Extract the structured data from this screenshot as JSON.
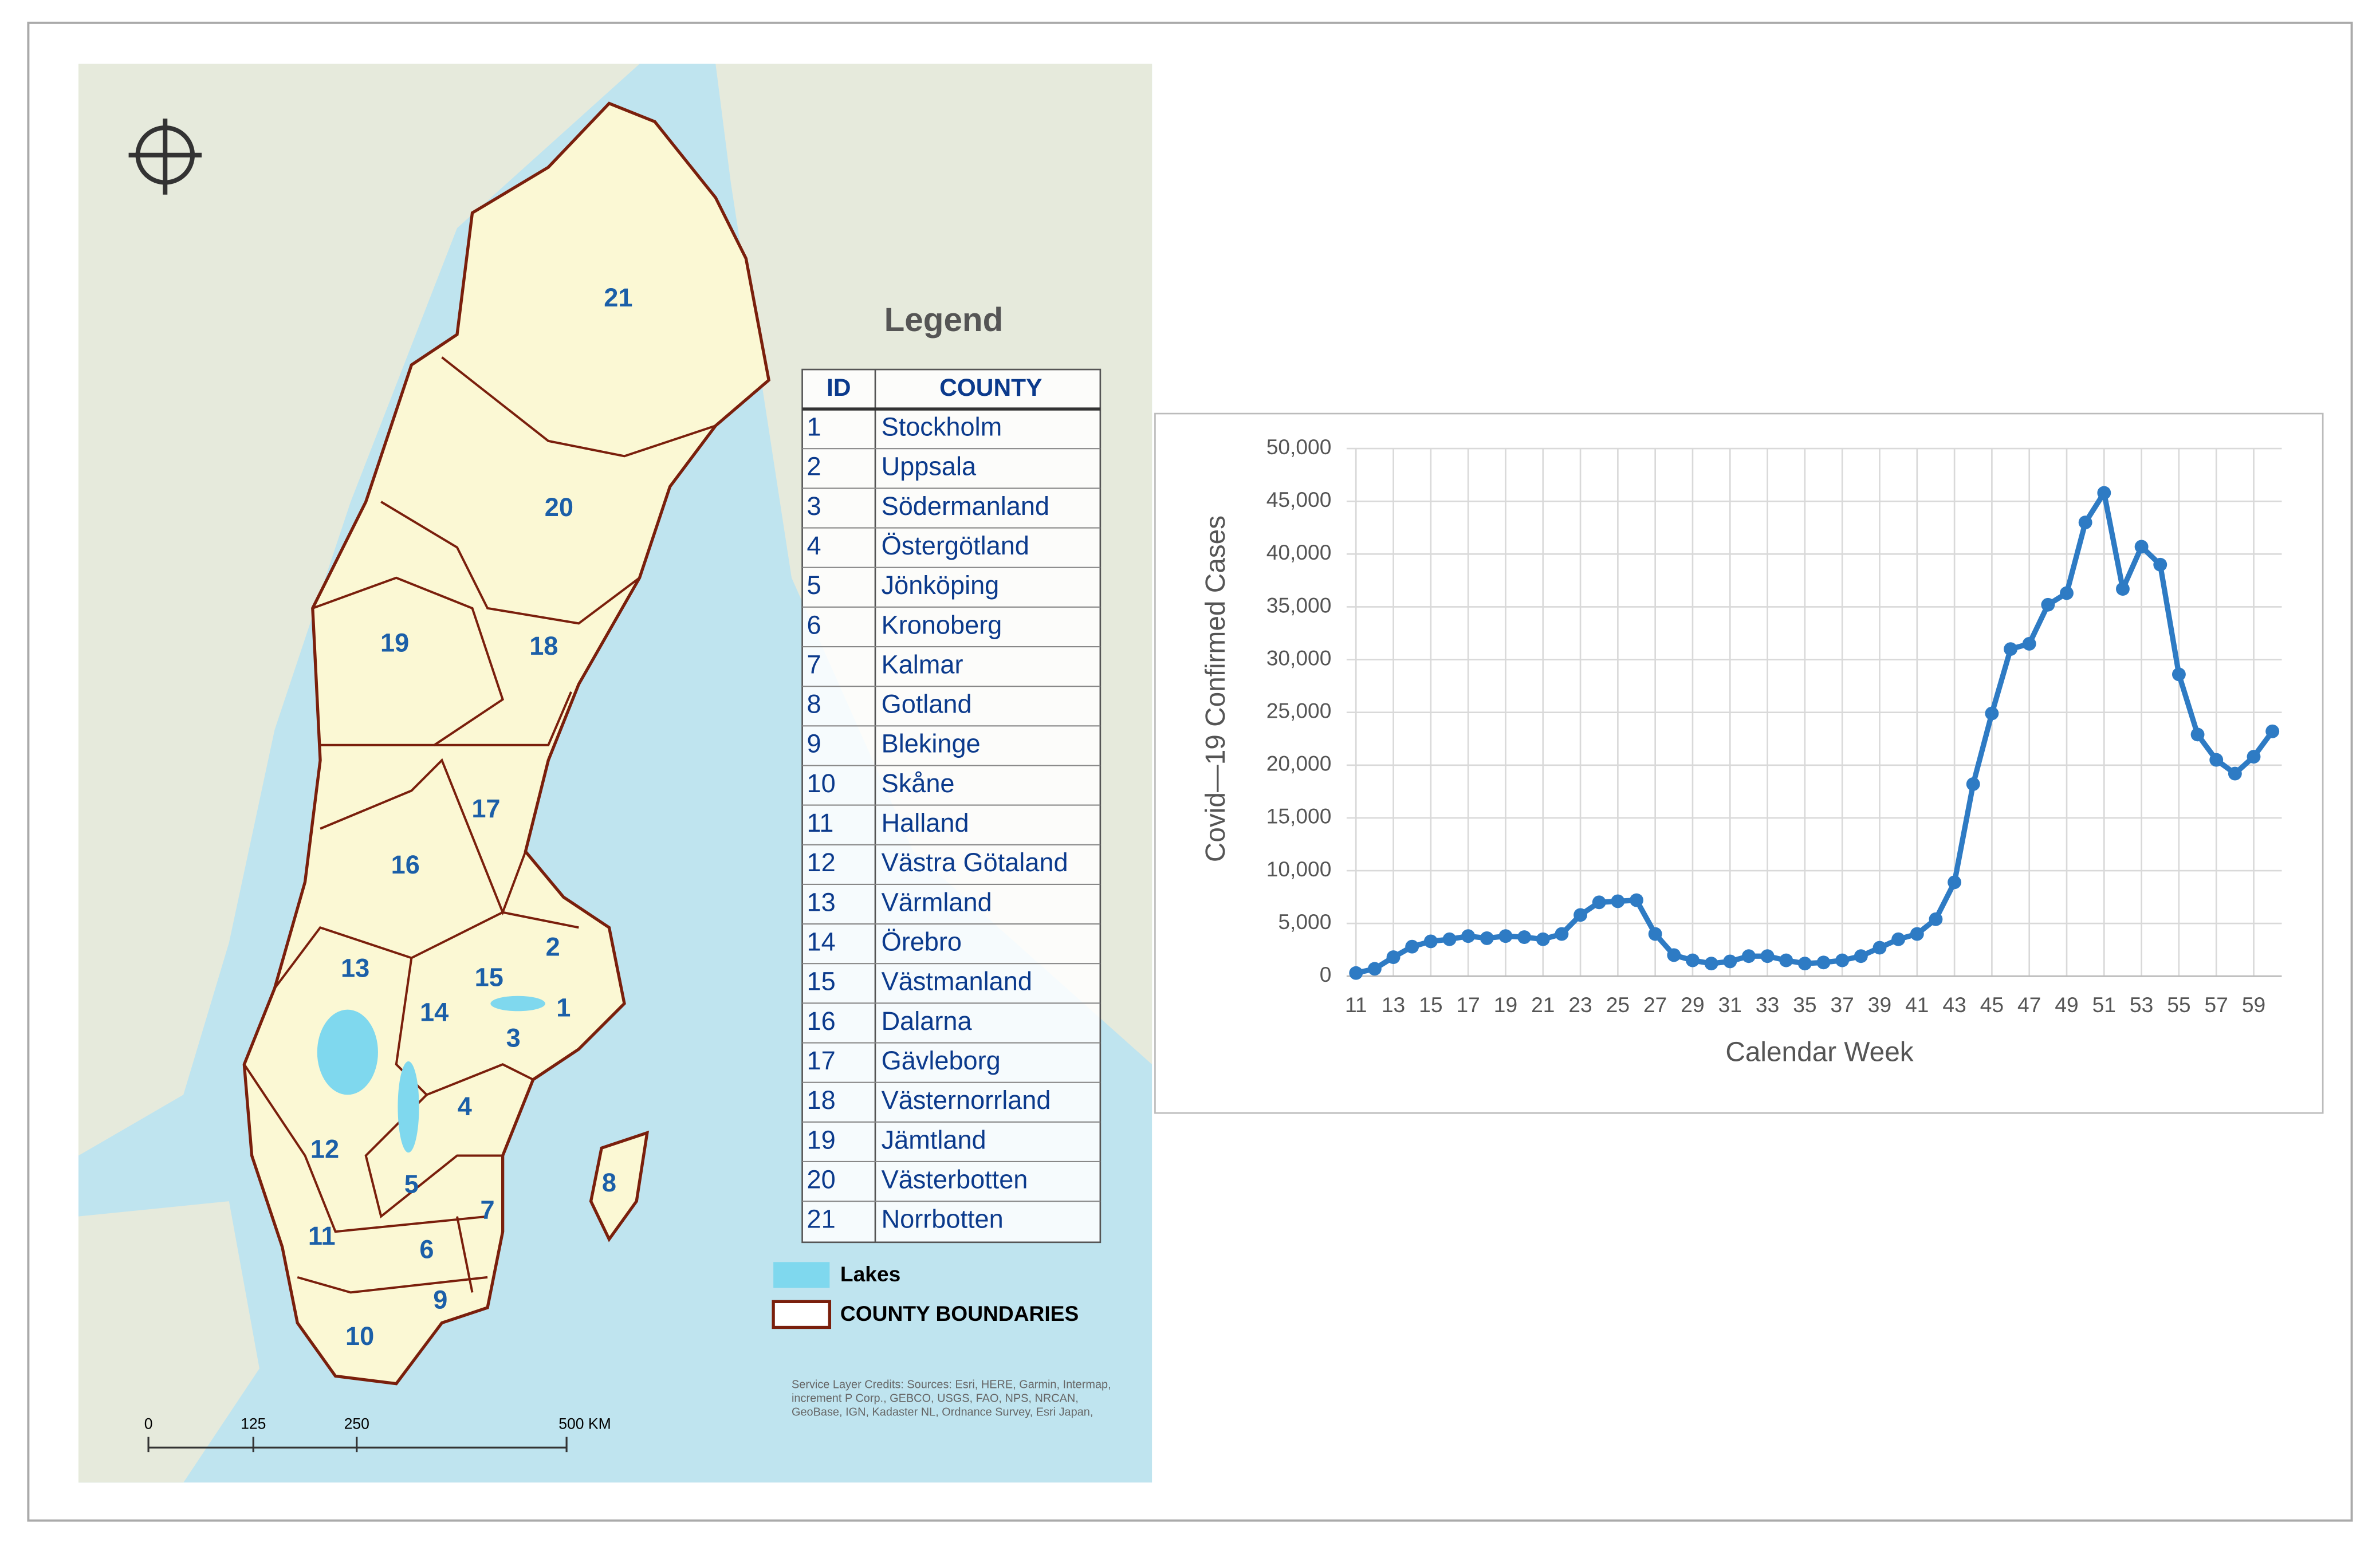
{
  "map": {
    "legend_title": "Legend",
    "table_header": [
      "ID",
      "COUNTY"
    ],
    "rows": [
      {
        "id": "1",
        "county": "Stockholm"
      },
      {
        "id": "2",
        "county": "Uppsala"
      },
      {
        "id": "3",
        "county": "Södermanland"
      },
      {
        "id": "4",
        "county": "Östergötland"
      },
      {
        "id": "5",
        "county": "Jönköping"
      },
      {
        "id": "6",
        "county": "Kronoberg"
      },
      {
        "id": "7",
        "county": "Kalmar"
      },
      {
        "id": "8",
        "county": "Gotland"
      },
      {
        "id": "9",
        "county": "Blekinge"
      },
      {
        "id": "10",
        "county": "Skåne"
      },
      {
        "id": "11",
        "county": "Halland"
      },
      {
        "id": "12",
        "county": "Västra Götaland"
      },
      {
        "id": "13",
        "county": "Värmland"
      },
      {
        "id": "14",
        "county": "Örebro"
      },
      {
        "id": "15",
        "county": "Västmanland"
      },
      {
        "id": "16",
        "county": "Dalarna"
      },
      {
        "id": "17",
        "county": "Gävleborg"
      },
      {
        "id": "18",
        "county": "Västernorrland"
      },
      {
        "id": "19",
        "county": "Jämtland"
      },
      {
        "id": "20",
        "county": "Västerbotten"
      },
      {
        "id": "21",
        "county": "Norrbotten"
      }
    ],
    "legend_items": [
      "Lakes",
      "COUNTY BOUNDARIES"
    ],
    "scale_labels": [
      "0",
      "125",
      "250",
      "500 KM"
    ],
    "credits": "Service Layer Credits: Sources: Esri, HERE, Garmin, Intermap, increment P Corp., GEBCO, USGS, FAO, NPS, NRCAN, GeoBase, IGN, Kadaster NL, Ordnance Survey, Esri Japan,"
  },
  "chart_data": {
    "type": "line",
    "y_label": "Covid—19 Confirmed  Cases",
    "x_label": "Calendar Week",
    "color": "#2e7bc4",
    "x": [
      11,
      12,
      13,
      14,
      15,
      16,
      17,
      18,
      19,
      20,
      21,
      22,
      23,
      24,
      25,
      26,
      27,
      28,
      29,
      30,
      31,
      32,
      33,
      34,
      35,
      36,
      37,
      38,
      39,
      40,
      41,
      42,
      43,
      44,
      45,
      46,
      47,
      48,
      49,
      50,
      51,
      52,
      53,
      54,
      55,
      56,
      57,
      58,
      59,
      60
    ],
    "values": [
      300,
      700,
      1800,
      2800,
      3300,
      3500,
      3800,
      3600,
      3800,
      3700,
      3500,
      4000,
      5800,
      7000,
      7100,
      7200,
      4000,
      2000,
      1500,
      1200,
      1400,
      1900,
      1900,
      1500,
      1200,
      1300,
      1500,
      1900,
      2700,
      3500,
      4000,
      5400,
      8900,
      18200,
      24900,
      31000,
      31500,
      35200,
      36300,
      43000,
      45800,
      36700,
      40700,
      39000,
      28600,
      22900,
      20500,
      19200,
      20800,
      23200
    ],
    "xlim": [
      10.5,
      60.5
    ],
    "xticks": [
      11,
      13,
      15,
      17,
      19,
      21,
      23,
      25,
      27,
      29,
      31,
      33,
      35,
      37,
      39,
      41,
      43,
      45,
      47,
      49,
      51,
      53,
      55,
      57,
      59
    ],
    "ylim": [
      0,
      50000
    ],
    "yticks": [
      0,
      {
        "value": 5000,
        "label": "5,000"
      },
      {
        "value": 10000,
        "label": "10,000"
      },
      {
        "value": 15000,
        "label": "15,000"
      },
      {
        "value": 20000,
        "label": "20,000"
      },
      {
        "value": 25000,
        "label": "25,000"
      },
      {
        "value": 30000,
        "label": "30,000"
      },
      {
        "value": 35000,
        "label": "35,000"
      },
      {
        "value": 40000,
        "label": "40,000"
      },
      {
        "value": 45000,
        "label": "45,000"
      },
      {
        "value": 50000,
        "label": "50,000"
      }
    ],
    "grid": true
  }
}
